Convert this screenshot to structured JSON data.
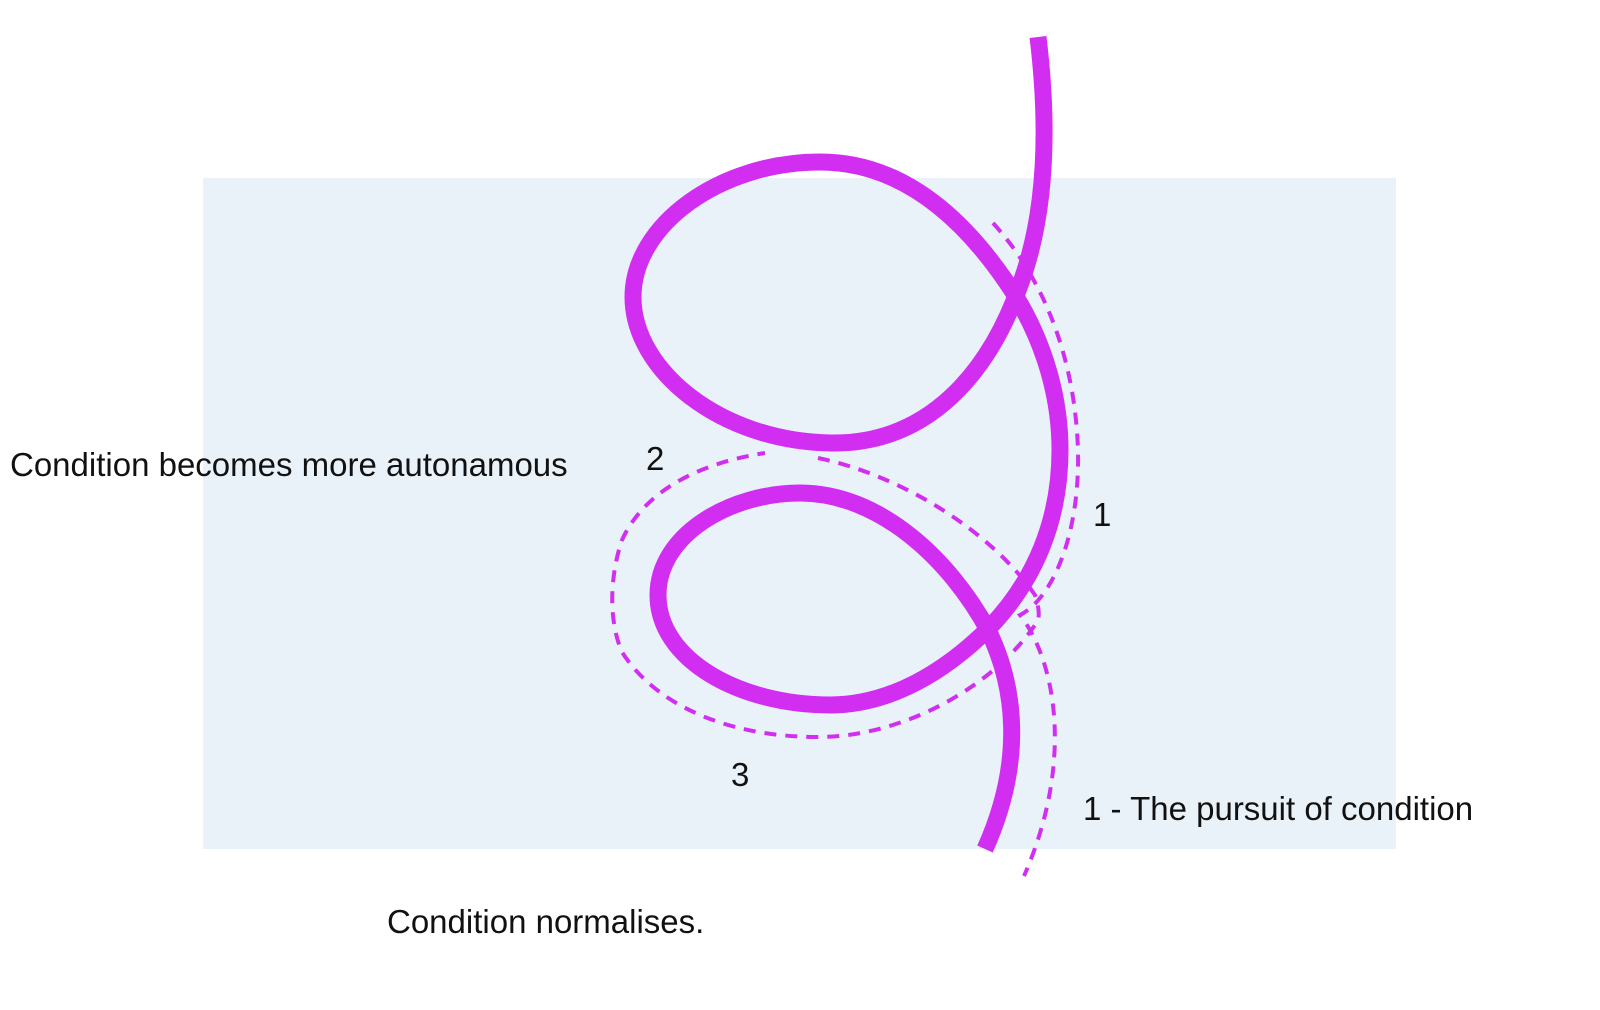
{
  "diagram": {
    "labels": {
      "autonomous": "Condition becomes more autonamous",
      "marker_two": "2",
      "marker_one": "1",
      "marker_three": "3",
      "legend_pursuit": "1 - The pursuit of condition",
      "normalises": "Condition normalises."
    },
    "colors": {
      "panel_background": "#eaf2f9",
      "path_stroke": "#d12ef2",
      "text": "#111111"
    }
  }
}
